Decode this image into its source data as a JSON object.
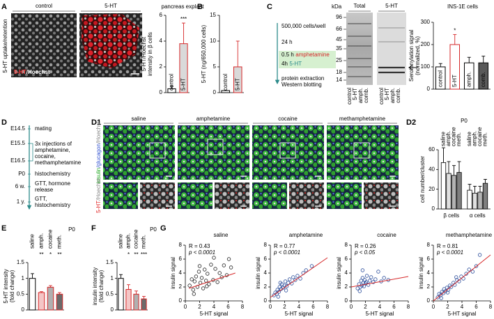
{
  "figure": {
    "panel_labels": [
      "A",
      "B",
      "C",
      "D",
      "D1",
      "D2",
      "E",
      "F",
      "G"
    ],
    "a": {
      "image_labels": [
        "control",
        "5-HT"
      ],
      "side_label": "5-HT uptake/retention",
      "stain": [
        "5-HT",
        "/Hoechst"
      ]
    },
    "c": {
      "protocol": [
        "500,000 cells/well",
        "24 h"
      ],
      "step1": [
        "0.5 h",
        "amphetamine"
      ],
      "step2": [
        "4h",
        "5-HT"
      ],
      "readout": [
        "protein extraction",
        "Western blotting"
      ],
      "blot_unit": "kDa",
      "blot_markers": [
        "96",
        "66",
        "45",
        "35",
        "25",
        "18",
        "14"
      ],
      "blot_titles": [
        "Total",
        "5-HT"
      ],
      "lanes": [
        "control",
        "5-HT",
        "amph.",
        "comb."
      ],
      "lane_colors": [
        "#000000",
        "#2a4d9b",
        "#d62728",
        "#000000"
      ]
    },
    "d": {
      "times": [
        "E14.5",
        "E15.5",
        "E16.5",
        "P0",
        "6 w.",
        "1 y."
      ],
      "events": [
        [
          "mating"
        ],
        [
          "3x injections of",
          "amphetamine,",
          "cocaine,",
          "methamphetamine"
        ],
        [
          "histochemistry"
        ],
        [
          "GTT, hormone",
          "release"
        ],
        [
          "GTT,",
          "histochemistry"
        ]
      ]
    },
    "d1": {
      "columns": [
        "saline",
        "amphetamine",
        "cocaine",
        "methamphetamine"
      ],
      "stain_top": [
        "insulin",
        "/glucagon",
        "/Hoechst"
      ],
      "stain_bottom": [
        "5-HT",
        "/Hoechst"
      ]
    }
  },
  "chart_data": [
    {
      "type": "bar",
      "title": "pancreas explant",
      "ylabel": [
        "5-HT/Hoechst",
        "intensity in β cells"
      ],
      "categories": [
        "control",
        "5-HT"
      ],
      "values": [
        0.3,
        3.8
      ],
      "errors": [
        0.2,
        1.6
      ],
      "fills": [
        "#ffffff",
        "#d9d9d9"
      ],
      "edges": [
        "#000000",
        "#d62728"
      ],
      "annotations": [
        null,
        "***"
      ],
      "ylim": [
        0,
        6
      ],
      "yticks": [
        0,
        2,
        4,
        6
      ]
    },
    {
      "type": "bar",
      "ylabel": [
        "5-HT (ng/650,000 cells)"
      ],
      "categories": [
        "control",
        "5-HT"
      ],
      "values": [
        0.4,
        5
      ],
      "errors": [
        null,
        5
      ],
      "fills": [
        "#ffffff",
        "#d9d9d9"
      ],
      "edges": [
        "#000000",
        "#d62728"
      ],
      "ylim": [
        0,
        15
      ],
      "yticks": [
        0,
        5,
        10,
        15
      ]
    },
    {
      "type": "bar",
      "title": "INS-1E cells",
      "ylabel": [
        "Serotonylation signal",
        "(normalized, %)"
      ],
      "categories": [
        "control",
        "5-HT",
        "amph.",
        "comb."
      ],
      "values": [
        100,
        200,
        118,
        118
      ],
      "errors": [
        15,
        45,
        25,
        30
      ],
      "fills": [
        "#ffffff",
        "#ffffff",
        "#ffffff",
        "#595959"
      ],
      "edges": [
        "#000000",
        "#d62728",
        "#000000",
        "#000000"
      ],
      "category_colors": [
        "#000000",
        "#000000",
        "#d62728",
        "#ffffff"
      ],
      "annotations": [
        null,
        "*",
        null,
        null
      ],
      "ylim": [
        0,
        300
      ],
      "yticks": [
        0,
        100,
        200,
        300
      ]
    },
    {
      "type": "grouped_bar",
      "title": "P0",
      "ylabel": [
        "cell number/cluster"
      ],
      "categories": [
        "β cells",
        "α cells"
      ],
      "series": [
        {
          "name": "saline",
          "color": "#ffffff",
          "values": [
            47,
            19
          ],
          "errors": [
            15,
            6
          ]
        },
        {
          "name": "amph.",
          "color": "#e0e0e0",
          "values": [
            36,
            16
          ],
          "errors": [
            12,
            7
          ]
        },
        {
          "name": "cocaine",
          "color": "#b3b3b3",
          "values": [
            34,
            17
          ],
          "errors": [
            10,
            6
          ]
        },
        {
          "name": "meth.",
          "color": "#7f7f7f",
          "values": [
            37,
            26
          ],
          "errors": [
            11,
            4
          ]
        }
      ],
      "ylim": [
        0,
        60
      ],
      "yticks": [
        0,
        20,
        40,
        60
      ]
    },
    {
      "type": "bar",
      "title": "P0",
      "ylabel": [
        "5-HT intensity",
        "(fold change)"
      ],
      "categories": [
        "saline",
        "amph.",
        "cocaine",
        "meth."
      ],
      "values": [
        1,
        0.55,
        0.72,
        0.5
      ],
      "errors": [
        0.15,
        0.03,
        0.05,
        0.05
      ],
      "fills": [
        "#ffffff",
        "#f4c6c6",
        "#b0b0b0",
        "#6b6b6b"
      ],
      "edges": [
        "#000000",
        "#d62728",
        "#d62728",
        "#d62728"
      ],
      "annotations": [
        null,
        "**",
        "*",
        "**"
      ],
      "ylim": [
        0,
        1.5
      ],
      "yticks": [
        0,
        0.5,
        1,
        1.5
      ]
    },
    {
      "type": "bar",
      "title": "P0",
      "ylabel": [
        "insulin intensity",
        "(fold change)"
      ],
      "categories": [
        "saline",
        "amph.",
        "cocaine",
        "meth."
      ],
      "values": [
        1,
        0.65,
        0.5,
        0.35
      ],
      "errors": [
        0.12,
        0.15,
        0.1,
        0.08
      ],
      "fills": [
        "#ffffff",
        "#f4c6c6",
        "#b0b0b0",
        "#6b6b6b"
      ],
      "edges": [
        "#000000",
        "#d62728",
        "#d62728",
        "#d62728"
      ],
      "annotations": [
        null,
        "*",
        "**",
        "***"
      ],
      "ylim": [
        0,
        1.5
      ],
      "yticks": [
        0,
        0.5,
        1,
        1.5
      ]
    },
    {
      "type": "scatter",
      "title": "saline",
      "r_label": "R = 0.43",
      "p_label": "p < 0.0001",
      "xlabel": "5-HT signal",
      "ylabel": "insulin signal",
      "color": "#222222",
      "fit_color": "#d62728",
      "x": [
        0.6,
        0.9,
        1.1,
        1.3,
        1.5,
        1.7,
        1.9,
        2.1,
        2.3,
        2.5,
        2.7,
        2.9,
        3.1,
        3.3,
        3.6,
        3.9,
        4.2,
        4.5,
        4.8,
        5.1,
        5.4,
        5.8,
        6.1,
        6.4,
        1.2,
        2.0,
        3.0,
        4.0
      ],
      "y": [
        2.2,
        3.1,
        1.6,
        2.8,
        3.5,
        2.0,
        4.2,
        2.6,
        3.3,
        1.8,
        4.5,
        2.9,
        3.9,
        2.4,
        5.2,
        3.0,
        4.6,
        2.7,
        4.0,
        3.4,
        5.1,
        3.7,
        6.0,
        4.8,
        1.0,
        5.0,
        2.1,
        6.2
      ],
      "fit": {
        "x": [
          0.5,
          7
        ],
        "y": [
          1.8,
          4.0
        ]
      },
      "xlim": [
        0,
        8
      ],
      "ylim": [
        0,
        8
      ],
      "xticks": [
        0,
        2,
        4,
        6,
        8
      ],
      "yticks": [
        0,
        2,
        4,
        6,
        8
      ]
    },
    {
      "type": "scatter",
      "title": "amphetamine",
      "r_label": "R = 0.77",
      "p_label": "p < 0.0001",
      "xlabel": "5-HT signal",
      "ylabel": "insulin signal",
      "color": "#2a4d9b",
      "fit_color": "#d62728",
      "x": [
        0.5,
        0.7,
        0.9,
        1.0,
        1.2,
        1.3,
        1.5,
        1.6,
        1.8,
        2.0,
        2.1,
        2.3,
        2.5,
        2.7,
        3.0,
        3.2,
        3.5,
        3.8,
        4.2,
        4.6,
        5.0,
        5.8,
        1.1,
        1.4,
        2.2
      ],
      "y": [
        0.8,
        1.2,
        1.0,
        1.6,
        1.3,
        2.0,
        1.7,
        2.4,
        1.9,
        2.2,
        2.8,
        2.1,
        2.6,
        3.1,
        2.5,
        3.4,
        3.0,
        3.6,
        3.2,
        4.0,
        4.4,
        5.0,
        0.6,
        2.6,
        1.5
      ],
      "fit": {
        "x": [
          0,
          8
        ],
        "y": [
          0.5,
          6.2
        ]
      },
      "xlim": [
        0,
        8
      ],
      "ylim": [
        0,
        8
      ],
      "xticks": [
        0,
        2,
        4,
        6,
        8
      ],
      "yticks": [
        0,
        2,
        4,
        6,
        8
      ]
    },
    {
      "type": "scatter",
      "title": "cocaine",
      "r_label": "R = 0.26",
      "p_label": "p < 0.05",
      "xlabel": "5-HT signal",
      "ylabel": "insulin signal",
      "color": "#2a4d9b",
      "fit_color": "#d62728",
      "x": [
        0.9,
        1.1,
        1.3,
        1.4,
        1.5,
        1.6,
        1.7,
        1.8,
        1.9,
        2.0,
        2.2,
        2.4,
        2.6,
        2.8,
        3.1,
        3.4,
        3.8,
        4.2,
        4.6,
        5.2,
        1.2,
        1.6,
        2.1
      ],
      "y": [
        1.8,
        2.4,
        2.0,
        2.9,
        2.2,
        3.3,
        2.6,
        2.1,
        3.0,
        2.5,
        3.6,
        2.3,
        2.9,
        3.4,
        2.7,
        3.1,
        4.2,
        2.8,
        3.3,
        3.0,
        1.4,
        4.4,
        2.7
      ],
      "fit": {
        "x": [
          0,
          8
        ],
        "y": [
          2.0,
          3.5
        ]
      },
      "xlim": [
        0,
        8
      ],
      "ylim": [
        0,
        8
      ],
      "xticks": [
        0,
        2,
        4,
        6,
        8
      ],
      "yticks": [
        0,
        2,
        4,
        6,
        8
      ]
    },
    {
      "type": "scatter",
      "title": "methamphetamine",
      "r_label": "R = 0.81",
      "p_label": "p < 0.0001",
      "xlabel": "5-HT signal",
      "ylabel": "insulin signal",
      "color": "#2a4d9b",
      "fit_color": "#d62728",
      "x": [
        0.6,
        0.8,
        1.0,
        1.2,
        1.4,
        1.5,
        1.7,
        1.9,
        2.1,
        2.3,
        2.5,
        2.8,
        3.0,
        3.3,
        3.6,
        3.9,
        4.2,
        4.6,
        5.0,
        5.5,
        6.0,
        6.5,
        1.1,
        2.0,
        3.2
      ],
      "y": [
        0.5,
        1.0,
        0.8,
        1.3,
        1.1,
        1.7,
        1.4,
        1.9,
        1.6,
        2.2,
        2.0,
        2.6,
        2.3,
        3.0,
        2.8,
        3.5,
        3.2,
        3.9,
        4.5,
        4.2,
        5.0,
        6.6,
        0.4,
        1.2,
        3.4
      ],
      "fit": {
        "x": [
          0,
          8
        ],
        "y": [
          0.0,
          6.6
        ]
      },
      "xlim": [
        0,
        8
      ],
      "ylim": [
        0,
        8
      ],
      "xticks": [
        0,
        2,
        4,
        6,
        8
      ],
      "yticks": [
        0,
        2,
        4,
        6,
        8
      ]
    }
  ]
}
